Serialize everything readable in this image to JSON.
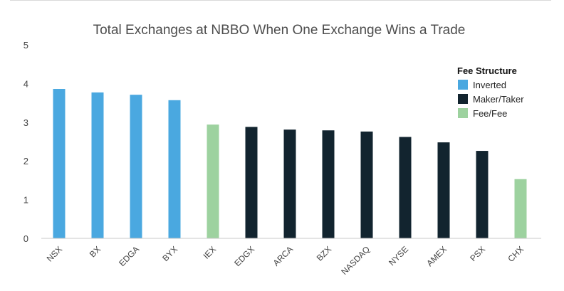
{
  "chart_data": {
    "type": "bar",
    "title": "Total Exchanges at NBBO When One Exchange Wins a Trade",
    "xlabel": "",
    "ylabel": "",
    "ylim": [
      0,
      5
    ],
    "yticks": [
      0,
      1,
      2,
      3,
      4,
      5
    ],
    "grid": false,
    "legend": {
      "title": "Fee Structure",
      "placement": "right",
      "entries": [
        {
          "key": "inverted",
          "label": "Inverted",
          "color": "#4aa8e0"
        },
        {
          "key": "maker_taker",
          "label": "Maker/Taker",
          "color": "#12242f"
        },
        {
          "key": "fee_fee",
          "label": "Fee/Fee",
          "color": "#9dd29f"
        }
      ]
    },
    "categories": [
      "NSX",
      "BX",
      "EDGA",
      "BYX",
      "IEX",
      "EDGX",
      "ARCA",
      "BZX",
      "NASDAQ",
      "NYSE",
      "AMEX",
      "PSX",
      "CHX"
    ],
    "values": [
      3.86,
      3.77,
      3.71,
      3.57,
      2.94,
      2.88,
      2.81,
      2.79,
      2.76,
      2.62,
      2.48,
      2.26,
      1.53
    ],
    "fee_structure": [
      "inverted",
      "inverted",
      "inverted",
      "inverted",
      "fee_fee",
      "maker_taker",
      "maker_taker",
      "maker_taker",
      "maker_taker",
      "maker_taker",
      "maker_taker",
      "maker_taker",
      "fee_fee"
    ]
  }
}
